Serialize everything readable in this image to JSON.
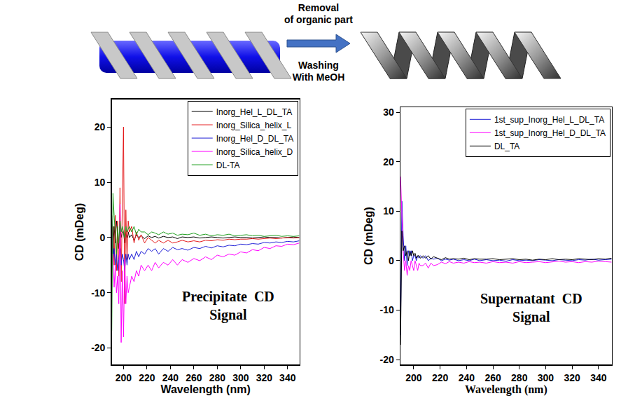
{
  "diagram": {
    "arrow_top": [
      "Removal",
      "of organic part"
    ],
    "arrow_bottom": [
      "Washing",
      "With MeOH"
    ]
  },
  "chart_data": [
    {
      "type": "line",
      "x_label": "Wavelength (nm)",
      "y_label": "CD (mDeg)",
      "annotation": [
        "Precipitate  CD",
        "Signal"
      ],
      "xlim": [
        190,
        350
      ],
      "xticks": [
        200,
        220,
        240,
        260,
        280,
        300,
        320,
        340
      ],
      "ylim": [
        -23,
        25
      ],
      "yticks": [
        -20,
        -10,
        0,
        10,
        20
      ],
      "grid": false,
      "legend": "upper right",
      "x": [
        190,
        191,
        192,
        193,
        194,
        195,
        196,
        197,
        198,
        199,
        200,
        201,
        202,
        203,
        204,
        205,
        207,
        209,
        211,
        213,
        215,
        218,
        221,
        224,
        227,
        230,
        234,
        238,
        242,
        246,
        250,
        255,
        260,
        265,
        270,
        275,
        280,
        285,
        290,
        295,
        300,
        305,
        310,
        315,
        320,
        325,
        330,
        335,
        340,
        345,
        350
      ],
      "series": [
        {
          "name": "Inorg_Hel_L_DL_TA",
          "color": "#000000",
          "values": [
            4,
            -3,
            2,
            -1,
            3,
            1,
            -2,
            2,
            0,
            1,
            1,
            -1,
            1,
            0,
            1,
            0,
            0.5,
            -0.5,
            0.5,
            0,
            0.3,
            -0.2,
            0.3,
            0,
            0.2,
            -0.1,
            0.2,
            0,
            0.1,
            -0.2,
            0.1,
            0,
            0.1,
            -0.1,
            0,
            0.1,
            0,
            -0.1,
            0,
            0.1,
            0,
            0,
            -0.1,
            0,
            0.1,
            0,
            0,
            -0.1,
            0,
            0.1,
            0
          ]
        },
        {
          "name": "Inorg_Silica_helix_L",
          "color": "#e41a1c",
          "values": [
            -3,
            2,
            -5,
            4,
            -6,
            3,
            -7,
            9,
            -8,
            10,
            20,
            -12,
            5,
            -4,
            3,
            1,
            2,
            -1,
            1,
            -0.5,
            0.5,
            -1,
            0,
            -0.5,
            -1,
            -0.5,
            -1,
            -0.5,
            -1,
            -0.8,
            -0.5,
            -0.8,
            -0.6,
            -0.8,
            -0.5,
            -0.6,
            -0.4,
            -0.5,
            -0.3,
            -0.4,
            -0.3,
            -0.3,
            -0.2,
            -0.3,
            -0.2,
            -0.1,
            -0.2,
            -0.1,
            0,
            -0.1,
            0
          ]
        },
        {
          "name": "Inorg_Hel_D_DL_TA",
          "color": "#1f1fd6",
          "values": [
            2,
            -4,
            -2,
            -5,
            -3,
            -6,
            -4,
            -2,
            -5,
            -3,
            -4,
            -6,
            -3,
            -5,
            -3,
            -4,
            -3,
            -4,
            -2.5,
            -3.5,
            -2.5,
            -3,
            -2,
            -2.5,
            -2,
            -3,
            -2,
            -2.5,
            -1.8,
            -2.2,
            -2,
            -2.3,
            -1.8,
            -2,
            -1.6,
            -1.9,
            -1.5,
            -1.7,
            -1.4,
            -1.5,
            -1.2,
            -1.3,
            -1.1,
            -1.2,
            -0.9,
            -1,
            -0.8,
            -0.9,
            -0.7,
            -0.8,
            -0.6
          ]
        },
        {
          "name": "Inorg_Silica_helix_D",
          "color": "#ff00ff",
          "values": [
            -6,
            -3,
            -9,
            -5,
            -10,
            -7,
            -12,
            6,
            -19,
            -6,
            -18,
            -4,
            -12,
            -7,
            -10,
            -9,
            -7,
            -8,
            -6,
            -7,
            -5,
            -6,
            -5,
            -6,
            -4.5,
            -5.5,
            -4.5,
            -5,
            -4,
            -5,
            -4,
            -4.5,
            -3.8,
            -4.2,
            -3.5,
            -4,
            -3.2,
            -3.5,
            -3,
            -3.2,
            -2.6,
            -2.8,
            -2.2,
            -2.4,
            -1.8,
            -2,
            -1.5,
            -1.6,
            -1.2,
            -1.3,
            -1
          ]
        },
        {
          "name": "DL-TA",
          "color": "#1e9e1e",
          "values": [
            -17,
            8,
            4,
            0,
            -3,
            2,
            -1,
            3,
            1,
            2,
            1,
            0,
            2,
            1,
            1.5,
            2,
            1,
            2,
            0.5,
            1.5,
            1,
            1,
            0.5,
            1,
            0.8,
            0.5,
            1,
            0.6,
            0.8,
            0.4,
            0.6,
            0.5,
            0.8,
            0.4,
            0.6,
            0.3,
            0.5,
            0.4,
            0.6,
            0.3,
            0.4,
            0.5,
            0.3,
            0.4,
            0.2,
            0.3,
            0.4,
            0.2,
            0.3,
            0.2,
            0.3
          ]
        }
      ]
    },
    {
      "type": "line",
      "x_label": "Wavelength (nm)",
      "y_label": "CD (mDeg)",
      "annotation": [
        "Supernatant  CD",
        "Signal"
      ],
      "xlim": [
        190,
        350
      ],
      "xticks": [
        200,
        220,
        240,
        260,
        280,
        300,
        320,
        340
      ],
      "ylim": [
        -21,
        31
      ],
      "yticks": [
        -20,
        -10,
        0,
        10,
        20,
        30
      ],
      "grid": false,
      "legend": "upper right",
      "x": [
        190,
        191,
        192,
        193,
        194,
        195,
        196,
        197,
        198,
        199,
        200,
        201,
        202,
        203,
        204,
        205,
        207,
        209,
        211,
        213,
        215,
        218,
        221,
        224,
        227,
        230,
        234,
        238,
        242,
        246,
        250,
        255,
        260,
        265,
        270,
        275,
        280,
        285,
        290,
        295,
        300,
        305,
        310,
        315,
        320,
        325,
        330,
        335,
        340,
        345,
        350
      ],
      "series": [
        {
          "name": "1st_sup_Inorg_Hel_L_DL_TA",
          "color": "#1f1fd6",
          "values": [
            -15,
            12,
            5,
            0,
            3,
            -1,
            2,
            1,
            2,
            0,
            1,
            1,
            0,
            1,
            0.5,
            1,
            0.5,
            1,
            0,
            0.5,
            0.3,
            0.5,
            0,
            0.3,
            0.1,
            0.3,
            0,
            0.2,
            0,
            0.3,
            0,
            0.2,
            0,
            0.1,
            -0.1,
            0.2,
            0,
            0.1,
            0,
            0.2,
            0.1,
            0,
            0.2,
            0.1,
            0,
            0.2,
            0.1,
            0.3,
            0.1,
            0.2,
            0.3
          ]
        },
        {
          "name": "1st_sup_Inorg_Hel_D_DL_TA",
          "color": "#ff00ff",
          "values": [
            17,
            10,
            2,
            -2,
            0,
            -3,
            -1,
            -2,
            0,
            -1,
            -2,
            0,
            -1,
            -2,
            -0.5,
            -1,
            -1,
            -0.5,
            -1.5,
            -0.5,
            -1,
            -0.8,
            -0.3,
            -0.6,
            -0.2,
            -0.5,
            -0.3,
            -0.5,
            -0.2,
            -0.4,
            -0.3,
            -0.5,
            -0.2,
            -0.4,
            -0.3,
            -0.5,
            -0.2,
            -0.4,
            -0.3,
            -0.2,
            -0.4,
            -0.3,
            -0.1,
            -0.3,
            -0.2,
            -0.4,
            -0.2,
            -0.3,
            -0.1,
            -0.2,
            -0.3
          ]
        },
        {
          "name": "DL_TA",
          "color": "#000000",
          "values": [
            -17,
            6,
            2,
            3,
            1,
            2,
            0,
            2,
            1,
            2,
            1,
            1.5,
            0.5,
            1,
            1,
            0.5,
            1,
            0.5,
            1,
            0.3,
            0.8,
            0.5,
            0.2,
            0.6,
            0.3,
            0.4,
            0.3,
            0.5,
            0.2,
            0.4,
            0.3,
            0.3,
            0.4,
            0.2,
            0.3,
            0.4,
            0.2,
            0.3,
            0.1,
            0.3,
            0.2,
            0.4,
            0.2,
            0.3,
            0.2,
            0.4,
            0.3,
            0.2,
            0.4,
            0.3,
            0.5
          ]
        }
      ]
    }
  ]
}
